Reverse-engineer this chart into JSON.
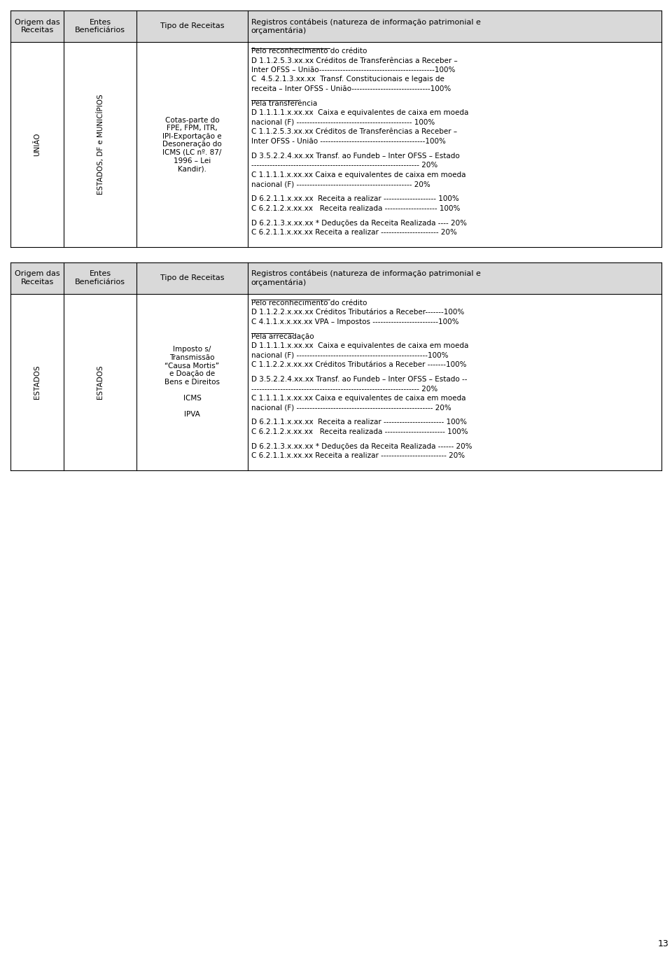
{
  "page_number": "13",
  "bg_color": "#ffffff",
  "border_color": "#000000",
  "header_bg": "#d9d9d9",
  "table1": {
    "header": [
      "Origem das\nReceitas",
      "Entes\nBeneficiários",
      "Tipo de Receitas",
      "Registros contábeis (natureza de informação patrimonial e\norçamentária)"
    ],
    "col1": "UNIÃO",
    "col2": "ESTADOS, DF e MUNICÍPIOS",
    "col3": "Cotas-parte do\nFPE, FPM, ITR,\nIPI-Exportação e\nDesoneração do\nICMS (LC nº. 87/\n1996 – Lei\nKandir).",
    "col4_lines": [
      {
        "text": "Pelo reconhecimento do crédito",
        "underline": true
      },
      {
        "text": "D 1.1.2.5.3.xx.xx Créditos de Transferências a Receber –",
        "underline": false
      },
      {
        "text": "Inter OFSS – União--------------------------------------------100%",
        "underline": false
      },
      {
        "text": "C  4.5.2.1.3.xx.xx  Transf. Constitucionais e legais de",
        "underline": false
      },
      {
        "text": "receita – Inter OFSS - União------------------------------100%",
        "underline": false
      },
      {
        "text": "",
        "underline": false
      },
      {
        "text": "Pela transferência",
        "underline": true
      },
      {
        "text": "D 1.1.1.1.x.xx.xx  Caixa e equivalentes de caixa em moeda",
        "underline": false
      },
      {
        "text": "nacional (F) -------------------------------------------- 100%",
        "underline": false
      },
      {
        "text": "C 1.1.2.5.3.xx.xx Créditos de Transferências a Receber –",
        "underline": false
      },
      {
        "text": "Inter OFSS - União ----------------------------------------100%",
        "underline": false
      },
      {
        "text": "",
        "underline": false
      },
      {
        "text": "D 3.5.2.2.4.xx.xx Transf. ao Fundeb – Inter OFSS – Estado",
        "underline": false
      },
      {
        "text": "---------------------------------------------------------------- 20%",
        "underline": false
      },
      {
        "text": "C 1.1.1.1.x.xx.xx Caixa e equivalentes de caixa em moeda",
        "underline": false
      },
      {
        "text": "nacional (F) -------------------------------------------- 20%",
        "underline": false
      },
      {
        "text": "",
        "underline": false
      },
      {
        "text": "D 6.2.1.1.x.xx.xx  Receita a realizar -------------------- 100%",
        "underline": false
      },
      {
        "text": "C 6.2.1.2.x.xx.xx   Receita realizada -------------------- 100%",
        "underline": false
      },
      {
        "text": "",
        "underline": false
      },
      {
        "text": "D 6.2.1.3.x.xx.xx * Deduções da Receita Realizada ---- 20%",
        "underline": false
      },
      {
        "text": "C 6.2.1.1.x.xx.xx Receita a realizar ---------------------- 20%",
        "underline": false
      }
    ]
  },
  "table2": {
    "header": [
      "Origem das\nReceitas",
      "Entes\nBeneficiários",
      "Tipo de Receitas",
      "Registros contábeis (natureza de informação patrimonial e\norçamentária)"
    ],
    "col1": "ESTADOS",
    "col2": "ESTADOS",
    "col3": "Imposto s/\nTransmissão\n“Causa Mortis”\ne Doação de\nBens e Direitos\n\nICMS\n\nIPVA",
    "col4_lines": [
      {
        "text": "Pelo reconhecimento do crédito",
        "underline": true
      },
      {
        "text": "D 1.1.2.2.x.xx.xx Créditos Tributários a Receber-------100%",
        "underline": false
      },
      {
        "text": "C 4.1.1.x.x.xx.xx VPA – Impostos -------------------------100%",
        "underline": false
      },
      {
        "text": "",
        "underline": false
      },
      {
        "text": "Pela arrecadação",
        "underline": true
      },
      {
        "text": "D 1.1.1.1.x.xx.xx  Caixa e equivalentes de caixa em moeda",
        "underline": false
      },
      {
        "text": "nacional (F) --------------------------------------------------100%",
        "underline": false
      },
      {
        "text": "C 1.1.2.2.x.xx.xx Créditos Tributários a Receber -------100%",
        "underline": false
      },
      {
        "text": "",
        "underline": false
      },
      {
        "text": "D 3.5.2.2.4.xx.xx Transf. ao Fundeb – Inter OFSS – Estado --",
        "underline": false
      },
      {
        "text": "---------------------------------------------------------------- 20%",
        "underline": false
      },
      {
        "text": "C 1.1.1.1.x.xx.xx Caixa e equivalentes de caixa em moeda",
        "underline": false
      },
      {
        "text": "nacional (F) ---------------------------------------------------- 20%",
        "underline": false
      },
      {
        "text": "",
        "underline": false
      },
      {
        "text": "D 6.2.1.1.x.xx.xx  Receita a realizar ----------------------- 100%",
        "underline": false
      },
      {
        "text": "C 6.2.1.2.x.xx.xx   Receita realizada ----------------------- 100%",
        "underline": false
      },
      {
        "text": "",
        "underline": false
      },
      {
        "text": "D 6.2.1.3.x.xx.xx * Deduções da Receita Realizada ------ 20%",
        "underline": false
      },
      {
        "text": "C 6.2.1.1.x.xx.xx Receita a realizar ------------------------- 20%",
        "underline": false
      }
    ]
  }
}
